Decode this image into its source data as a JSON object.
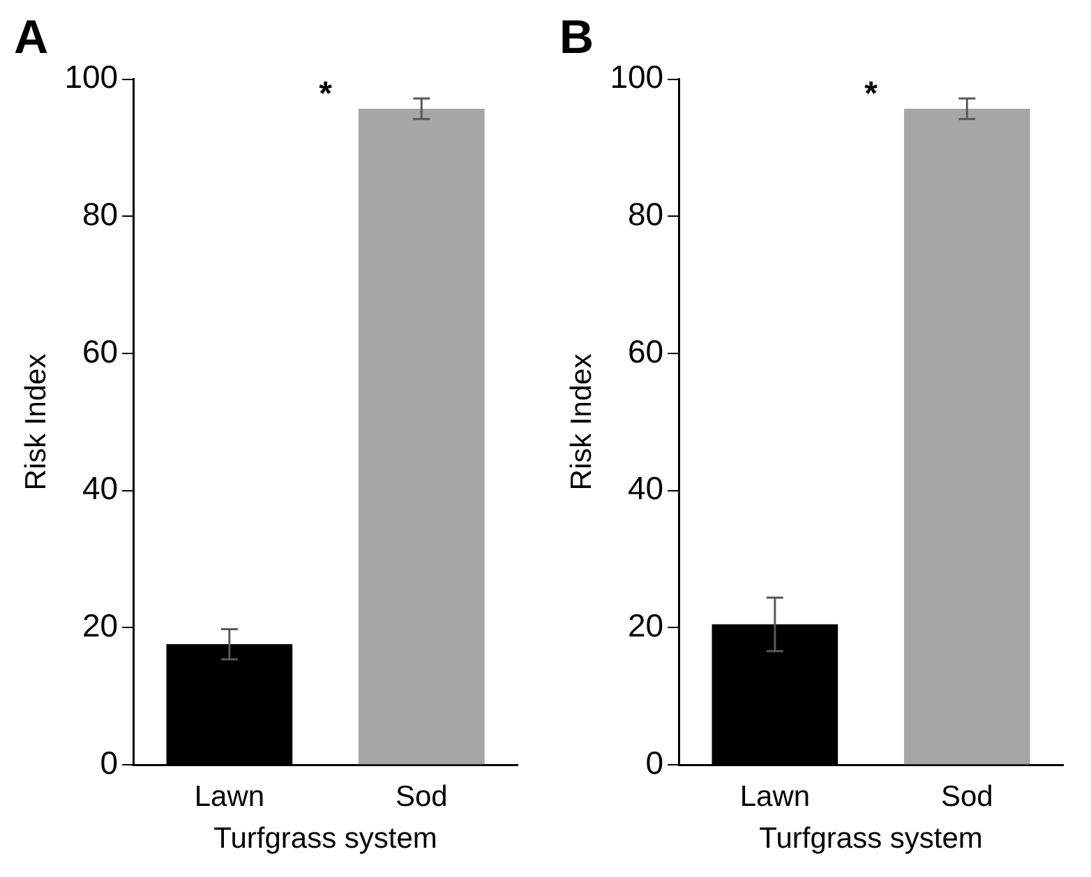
{
  "chart_data": [
    {
      "type": "bar",
      "title": "A",
      "xlabel": "Turfgrass system",
      "ylabel": "Risk Index",
      "categories": [
        "Lawn",
        "Sod"
      ],
      "values": [
        17.6,
        95.7
      ],
      "errors": [
        2.2,
        1.5
      ],
      "colors": [
        "#000000",
        "#a6a6a6"
      ],
      "ylim": [
        0,
        100
      ],
      "yticks": [
        0,
        20,
        40,
        60,
        80,
        100
      ],
      "grid": false,
      "legend": false,
      "annotations": [
        "*"
      ]
    },
    {
      "type": "bar",
      "title": "B",
      "xlabel": "Turfgrass system",
      "ylabel": "Risk Index",
      "categories": [
        "Lawn",
        "Sod"
      ],
      "values": [
        20.5,
        95.7
      ],
      "errors": [
        3.9,
        1.5
      ],
      "colors": [
        "#000000",
        "#a6a6a6"
      ],
      "ylim": [
        0,
        100
      ],
      "yticks": [
        0,
        20,
        40,
        60,
        80,
        100
      ],
      "grid": false,
      "legend": false,
      "annotations": [
        "*"
      ]
    }
  ]
}
